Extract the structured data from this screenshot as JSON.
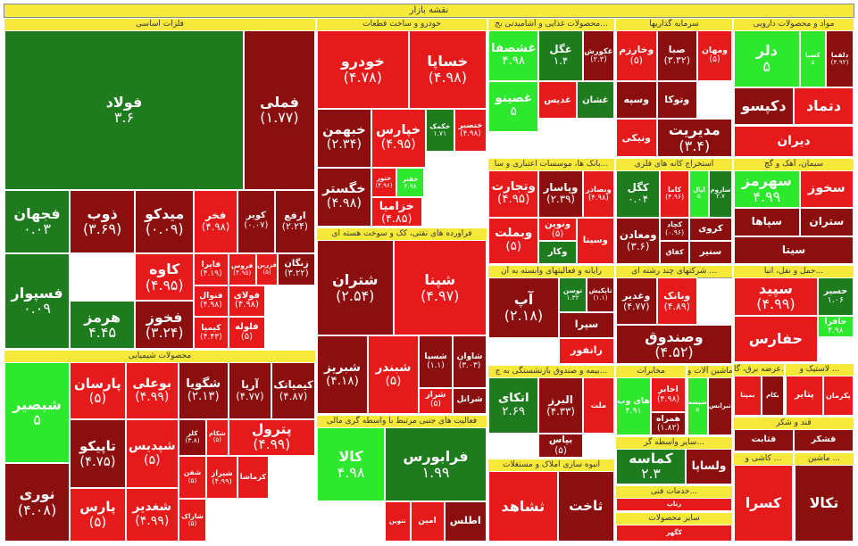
{
  "title": "نقشه بازار",
  "colors": {
    "dark_green": "#1e7b1e",
    "light_green": "#2ee82e",
    "red": "#e61a1a",
    "dark_red": "#8b0f0f",
    "header": "#f7e93a"
  },
  "chart_data": {
    "type": "treemap",
    "sectors": [
      {
        "name": "فلزات اساسی",
        "tiles": [
          {
            "symbol": "فولاد",
            "value": "۳.۶",
            "color": "dark_green"
          },
          {
            "symbol": "فملی",
            "value": "(۱.۷۷)",
            "color": "dark_red"
          },
          {
            "symbol": "فجهان",
            "value": "۰.۰۳",
            "color": "dark_green"
          },
          {
            "symbol": "ذوب",
            "value": "(۳.۶۹)",
            "color": "dark_red"
          },
          {
            "symbol": "فسپوار",
            "value": "۰.۰۹",
            "color": "dark_green"
          },
          {
            "symbol": "فاسمین",
            "value": "(۴.۹)",
            "color": "dark_red"
          },
          {
            "symbol": "میدکو",
            "value": "(۰.۰۹)",
            "color": "dark_red"
          },
          {
            "symbol": "فخر",
            "value": "(۴.۹۸)",
            "color": "red"
          },
          {
            "symbol": "کویر",
            "value": "(۰.۰۷)",
            "color": "dark_red"
          },
          {
            "symbol": "ارفع",
            "value": "(۲.۲۴)",
            "color": "dark_red"
          },
          {
            "symbol": "کاوه",
            "value": "(۴.۹۵)",
            "color": "red"
          },
          {
            "symbol": "فایرا",
            "value": "(۴.۱۹)",
            "color": "red"
          },
          {
            "symbol": "فروس",
            "value": "(۴.۹۵)",
            "color": "red"
          },
          {
            "symbol": "فزرین",
            "value": "(۵)",
            "color": "red"
          },
          {
            "symbol": "زنگان",
            "value": "(۳.۲۲)",
            "color": "dark_red"
          },
          {
            "symbol": "هرمز",
            "value": "۴.۴۵",
            "color": "dark_green"
          },
          {
            "symbol": "فخوز",
            "value": "(۳.۲۴)",
            "color": "dark_red"
          },
          {
            "symbol": "فنوال",
            "value": "(۴.۹۸)",
            "color": "red"
          },
          {
            "symbol": "فولای",
            "value": "(۴.۹۸)",
            "color": "red"
          },
          {
            "symbol": "کیمیا",
            "value": "(۴.۴۳)",
            "color": "red"
          },
          {
            "symbol": "فلوله",
            "value": "(۵)",
            "color": "red"
          }
        ]
      },
      {
        "name": "خودرو و ساخت قطعات",
        "tiles": [
          {
            "symbol": "خودرو",
            "value": "(۴.۷۸)",
            "color": "red"
          },
          {
            "symbol": "خساپا",
            "value": "(۴.۹۸)",
            "color": "red"
          },
          {
            "symbol": "خبهمن",
            "value": "(۲.۳۴)",
            "color": "dark_red"
          },
          {
            "symbol": "خپارس",
            "value": "(۴.۹۵)",
            "color": "red"
          },
          {
            "symbol": "خکمک",
            "value": "۱.۷۱",
            "color": "dark_green"
          },
          {
            "symbol": "خنصیر",
            "value": "(۴.۹۸)",
            "color": "red"
          },
          {
            "symbol": "خگستر",
            "value": "(۴.۹۸)",
            "color": "dark_red"
          },
          {
            "symbol": "ختور",
            "value": "(۴.۹۶)",
            "color": "red"
          },
          {
            "symbol": "خفنر",
            "value": "۴.۹۸",
            "color": "light_green"
          },
          {
            "symbol": "خزامیا",
            "value": "(۴.۸۵)",
            "color": "red"
          }
        ]
      },
      {
        "name": "محصولات غذایی و آشامیدنی بج...",
        "tiles": [
          {
            "symbol": "غشصفا",
            "value": "۴.۹۸",
            "color": "light_green"
          },
          {
            "symbol": "غگل",
            "value": "۱.۴",
            "color": "dark_green"
          },
          {
            "symbol": "غکورش",
            "value": "(۲.۳)",
            "color": "dark_red"
          },
          {
            "symbol": "غصینو",
            "value": "۵",
            "color": "light_green"
          },
          {
            "symbol": "غدیس",
            "value": "",
            "color": "red"
          },
          {
            "symbol": "غشان",
            "value": "",
            "color": "dark_green"
          }
        ]
      },
      {
        "name": "سرمایه گذاریها",
        "tiles": [
          {
            "symbol": "وخارزم",
            "value": "(۵)",
            "color": "red"
          },
          {
            "symbol": "صبا",
            "value": "(۳.۳۲)",
            "color": "dark_red"
          },
          {
            "symbol": "ومهان",
            "value": "(۵)",
            "color": "red"
          },
          {
            "symbol": "وسپه",
            "value": "",
            "color": "dark_red"
          },
          {
            "symbol": "وتوکا",
            "value": "",
            "color": "dark_red"
          },
          {
            "symbol": "ونیکی",
            "value": "",
            "color": "red"
          },
          {
            "symbol": "مدیریت",
            "value": "(۳.۴)",
            "color": "dark_red"
          }
        ]
      },
      {
        "name": "مواد و محصولات دارویی",
        "tiles": [
          {
            "symbol": "دلر",
            "value": "۵",
            "color": "light_green"
          },
          {
            "symbol": "کسپا",
            "value": "۵",
            "color": "light_green"
          },
          {
            "symbol": "دلقما",
            "value": "(۴.۹۲)",
            "color": "dark_red"
          },
          {
            "symbol": "دکپسو",
            "value": "",
            "color": "dark_red"
          },
          {
            "symbol": "دتماد",
            "value": "",
            "color": "red"
          },
          {
            "symbol": "دیران",
            "value": "",
            "color": "red"
          }
        ]
      },
      {
        "name": "سیمان، آهک و گچ",
        "tiles": [
          {
            "symbol": "سهرمز",
            "value": "۴.۹۹",
            "color": "light_green"
          },
          {
            "symbol": "سخوز",
            "value": "",
            "color": "red"
          },
          {
            "symbol": "سپاها",
            "value": "",
            "color": "dark_red"
          },
          {
            "symbol": "ستران",
            "value": "",
            "color": "dark_red"
          },
          {
            "symbol": "سیتا",
            "value": "",
            "color": "dark_red"
          }
        ]
      },
      {
        "name": "استخراج کانه های فلزی",
        "tiles": [
          {
            "symbol": "کگل",
            "value": "۰.۰۴",
            "color": "dark_green"
          },
          {
            "symbol": "کاما",
            "value": "(۴.۹۶)",
            "color": "red"
          },
          {
            "symbol": "اپال",
            "value": "۵",
            "color": "light_green"
          },
          {
            "symbol": "ساروم",
            "value": "۲.۷",
            "color": "dark_green"
          },
          {
            "symbol": "ومعادن",
            "value": "(۳.۶)",
            "color": "dark_red"
          },
          {
            "symbol": "کچاد",
            "value": "(۰.۹۶)",
            "color": "dark_red"
          },
          {
            "symbol": "کروی",
            "value": "",
            "color": "dark_red"
          },
          {
            "symbol": "کفاق",
            "value": "",
            "color": "dark_red"
          },
          {
            "symbol": "سنیر",
            "value": "",
            "color": "dark_red"
          }
        ]
      },
      {
        "name": "بانک ها، موسسات اعتباری و سا...",
        "tiles": [
          {
            "symbol": "وتجارت",
            "value": "(۴.۹۵)",
            "color": "red"
          },
          {
            "symbol": "وپاسار",
            "value": "(۲.۳۹)",
            "color": "dark_red"
          },
          {
            "symbol": "وبصادر",
            "value": "(۴.۹۸)",
            "color": "red"
          },
          {
            "symbol": "وبملت",
            "value": "(۵)",
            "color": "red"
          },
          {
            "symbol": "ونوین",
            "value": "(۵)",
            "color": "red"
          },
          {
            "symbol": "وسینا",
            "value": "",
            "color": "red"
          },
          {
            "symbol": "وکار",
            "value": "",
            "color": "dark_green"
          }
        ]
      },
      {
        "name": "فراورده های نفتی، کک و سوخت هسته ای",
        "tiles": [
          {
            "symbol": "شتران",
            "value": "(۲.۵۴)",
            "color": "dark_red"
          },
          {
            "symbol": "شپنا",
            "value": "(۴.۹۷)",
            "color": "red"
          },
          {
            "symbol": "شبریز",
            "value": "(۴.۱۸)",
            "color": "dark_red"
          },
          {
            "symbol": "شبندر",
            "value": "(۵)",
            "color": "red"
          },
          {
            "symbol": "شسپا",
            "value": "(۱.۱)",
            "color": "dark_red"
          },
          {
            "symbol": "شاوان",
            "value": "(۳.۰۳)",
            "color": "dark_red"
          },
          {
            "symbol": "شراز",
            "value": "(۵)",
            "color": "red"
          },
          {
            "symbol": "شرانل",
            "value": "",
            "color": "dark_red"
          },
          {
            "symbol": "شنفت",
            "value": "",
            "color": "dark_red"
          }
        ]
      },
      {
        "name": "رایانه و فعالیتهای وابسته به آن",
        "tiles": [
          {
            "symbol": "آپ",
            "value": "(۲.۱۸)",
            "color": "dark_red"
          },
          {
            "symbol": "توسن",
            "value": "۱.۳۲",
            "color": "dark_green"
          },
          {
            "symbol": "تاپکیش",
            "value": "(۱.۱)",
            "color": "dark_red"
          },
          {
            "symbol": "سپرا",
            "value": "",
            "color": "dark_red"
          },
          {
            "symbol": "رانفور",
            "value": "",
            "color": "red"
          }
        ]
      },
      {
        "name": "شرکتهای چند رشته ای ...",
        "tiles": [
          {
            "symbol": "وغدیر",
            "value": "(۴.۷۷)",
            "color": "dark_red"
          },
          {
            "symbol": "وبانک",
            "value": "(۴.۸۹)",
            "color": "red"
          },
          {
            "symbol": "وصندوق",
            "value": "(۴.۵۲)",
            "color": "dark_red"
          }
        ]
      },
      {
        "name": "حمل و نقل، انبا...",
        "tiles": [
          {
            "symbol": "سپید",
            "value": "(۴.۹۹)",
            "color": "red"
          },
          {
            "symbol": "حسیر",
            "value": "۱.۰۶",
            "color": "dark_green"
          },
          {
            "symbol": "حافرا",
            "value": "۴.۹۸",
            "color": "light_green"
          },
          {
            "symbol": "حفارس",
            "value": "",
            "color": "red"
          }
        ]
      },
      {
        "name": "محصولات شیمیایی",
        "tiles": [
          {
            "symbol": "شبصیر",
            "value": "۵",
            "color": "light_green"
          },
          {
            "symbol": "پارسان",
            "value": "(۵)",
            "color": "red"
          },
          {
            "symbol": "بوعلی",
            "value": "(۴.۹۹)",
            "color": "red"
          },
          {
            "symbol": "شگویا",
            "value": "(۲.۱۳)",
            "color": "dark_red"
          },
          {
            "symbol": "آریا",
            "value": "(۴.۷۷)",
            "color": "dark_red"
          },
          {
            "symbol": "کیمیاتک",
            "value": "(۴.۸۷)",
            "color": "dark_red"
          },
          {
            "symbol": "نوری",
            "value": "(۴.۰۸)",
            "color": "dark_red"
          },
          {
            "symbol": "تاپیکو",
            "value": "(۴.۷۵)",
            "color": "dark_red"
          },
          {
            "symbol": "شپدیس",
            "value": "(۵)",
            "color": "red"
          },
          {
            "symbol": "کلر",
            "value": "(۳.۸)",
            "color": "dark_red"
          },
          {
            "symbol": "شکام",
            "value": "(۵)",
            "color": "red"
          },
          {
            "symbol": "پارس",
            "value": "(۵)",
            "color": "red"
          },
          {
            "symbol": "شغدیر",
            "value": "(۴.۹۹)",
            "color": "red"
          },
          {
            "symbol": "شفن",
            "value": "(۵)",
            "color": "red"
          },
          {
            "symbol": "شاراک",
            "value": "(۵)",
            "color": "red"
          },
          {
            "symbol": "شیراز",
            "value": "(۴.۹۹)",
            "color": "red"
          },
          {
            "symbol": "کرماشا",
            "value": "",
            "color": "red"
          },
          {
            "symbol": "پترول",
            "value": "(۴.۹۹)",
            "color": "red"
          }
        ]
      },
      {
        "name": "فعالیت های جنبی مرتبط با واسطه گری مالی",
        "tiles": [
          {
            "symbol": "کالا",
            "value": "۴.۹۸",
            "color": "light_green"
          },
          {
            "symbol": "فرابورس",
            "value": "۱.۹۹",
            "color": "dark_green"
          },
          {
            "symbol": "امین",
            "value": "",
            "color": "red"
          },
          {
            "symbol": "تنوین",
            "value": "",
            "color": "red"
          },
          {
            "symbol": "اطلس",
            "value": "",
            "color": "dark_red"
          }
        ]
      },
      {
        "name": "بیمه و صندوق بازنشستگی به ج...",
        "tiles": [
          {
            "symbol": "اتکای",
            "value": "۲.۶۹",
            "color": "dark_green"
          },
          {
            "symbol": "البرز",
            "value": "(۴.۳۳)",
            "color": "dark_red"
          },
          {
            "symbol": "ملت",
            "value": "",
            "color": "red"
          },
          {
            "symbol": "بپاس",
            "value": "(۵)",
            "color": "dark_red"
          }
        ]
      },
      {
        "name": "مخابرات",
        "tiles": [
          {
            "symbol": "های وب",
            "value": "۴.۹۱",
            "color": "light_green"
          },
          {
            "symbol": "اخابر",
            "value": "(۴.۹۸)",
            "color": "red"
          },
          {
            "symbol": "همراه",
            "value": "(۱.۸۲)",
            "color": "dark_red"
          }
        ]
      },
      {
        "name": "لاستیک و ...",
        "tiles": [
          {
            "symbol": "پتایر",
            "value": "",
            "color": "red"
          },
          {
            "symbol": "پکرمان",
            "value": "",
            "color": "red"
          }
        ]
      },
      {
        "name": "عرضه برق، گا...",
        "tiles": [
          {
            "symbol": "بمپنا",
            "value": "",
            "color": "red"
          },
          {
            "symbol": "بکام",
            "value": "",
            "color": "dark_red"
          }
        ]
      },
      {
        "name": "ماشین آلات و ...",
        "tiles": [
          {
            "symbol": "شپشه",
            "value": "۵",
            "color": "light_green"
          },
          {
            "symbol": "تبرانس",
            "value": "",
            "color": "dark_red"
          }
        ]
      },
      {
        "name": "انبوه سازی املاک و مستغلات",
        "tiles": [
          {
            "symbol": "ثشاهد",
            "value": "",
            "color": "red"
          },
          {
            "symbol": "ثاخت",
            "value": "",
            "color": "dark_red"
          }
        ]
      },
      {
        "name": "سایر واسطه گر...",
        "tiles": [
          {
            "symbol": "کماسه",
            "value": "۲.۳",
            "color": "dark_green"
          },
          {
            "symbol": "ولساپا",
            "value": "",
            "color": "dark_red"
          }
        ]
      },
      {
        "name": "قند و شکر",
        "tiles": [
          {
            "symbol": "قثابت",
            "value": "",
            "color": "dark_red"
          },
          {
            "symbol": "قشکر",
            "value": "",
            "color": "dark_red"
          }
        ]
      },
      {
        "name": "خدمات فنی...",
        "tiles": [
          {
            "symbol": "رتاپ",
            "value": "",
            "color": "red"
          }
        ]
      },
      {
        "name": "سایر محصولات",
        "tiles": [
          {
            "symbol": "کگهر",
            "value": "",
            "color": "red"
          }
        ]
      },
      {
        "name": "کاشی و ...",
        "tiles": [
          {
            "symbol": "کسرا",
            "value": "",
            "color": "red"
          }
        ]
      },
      {
        "name": "ماشین ...",
        "tiles": [
          {
            "symbol": "تکالا",
            "value": "",
            "color": "dark_red"
          }
        ]
      }
    ]
  }
}
